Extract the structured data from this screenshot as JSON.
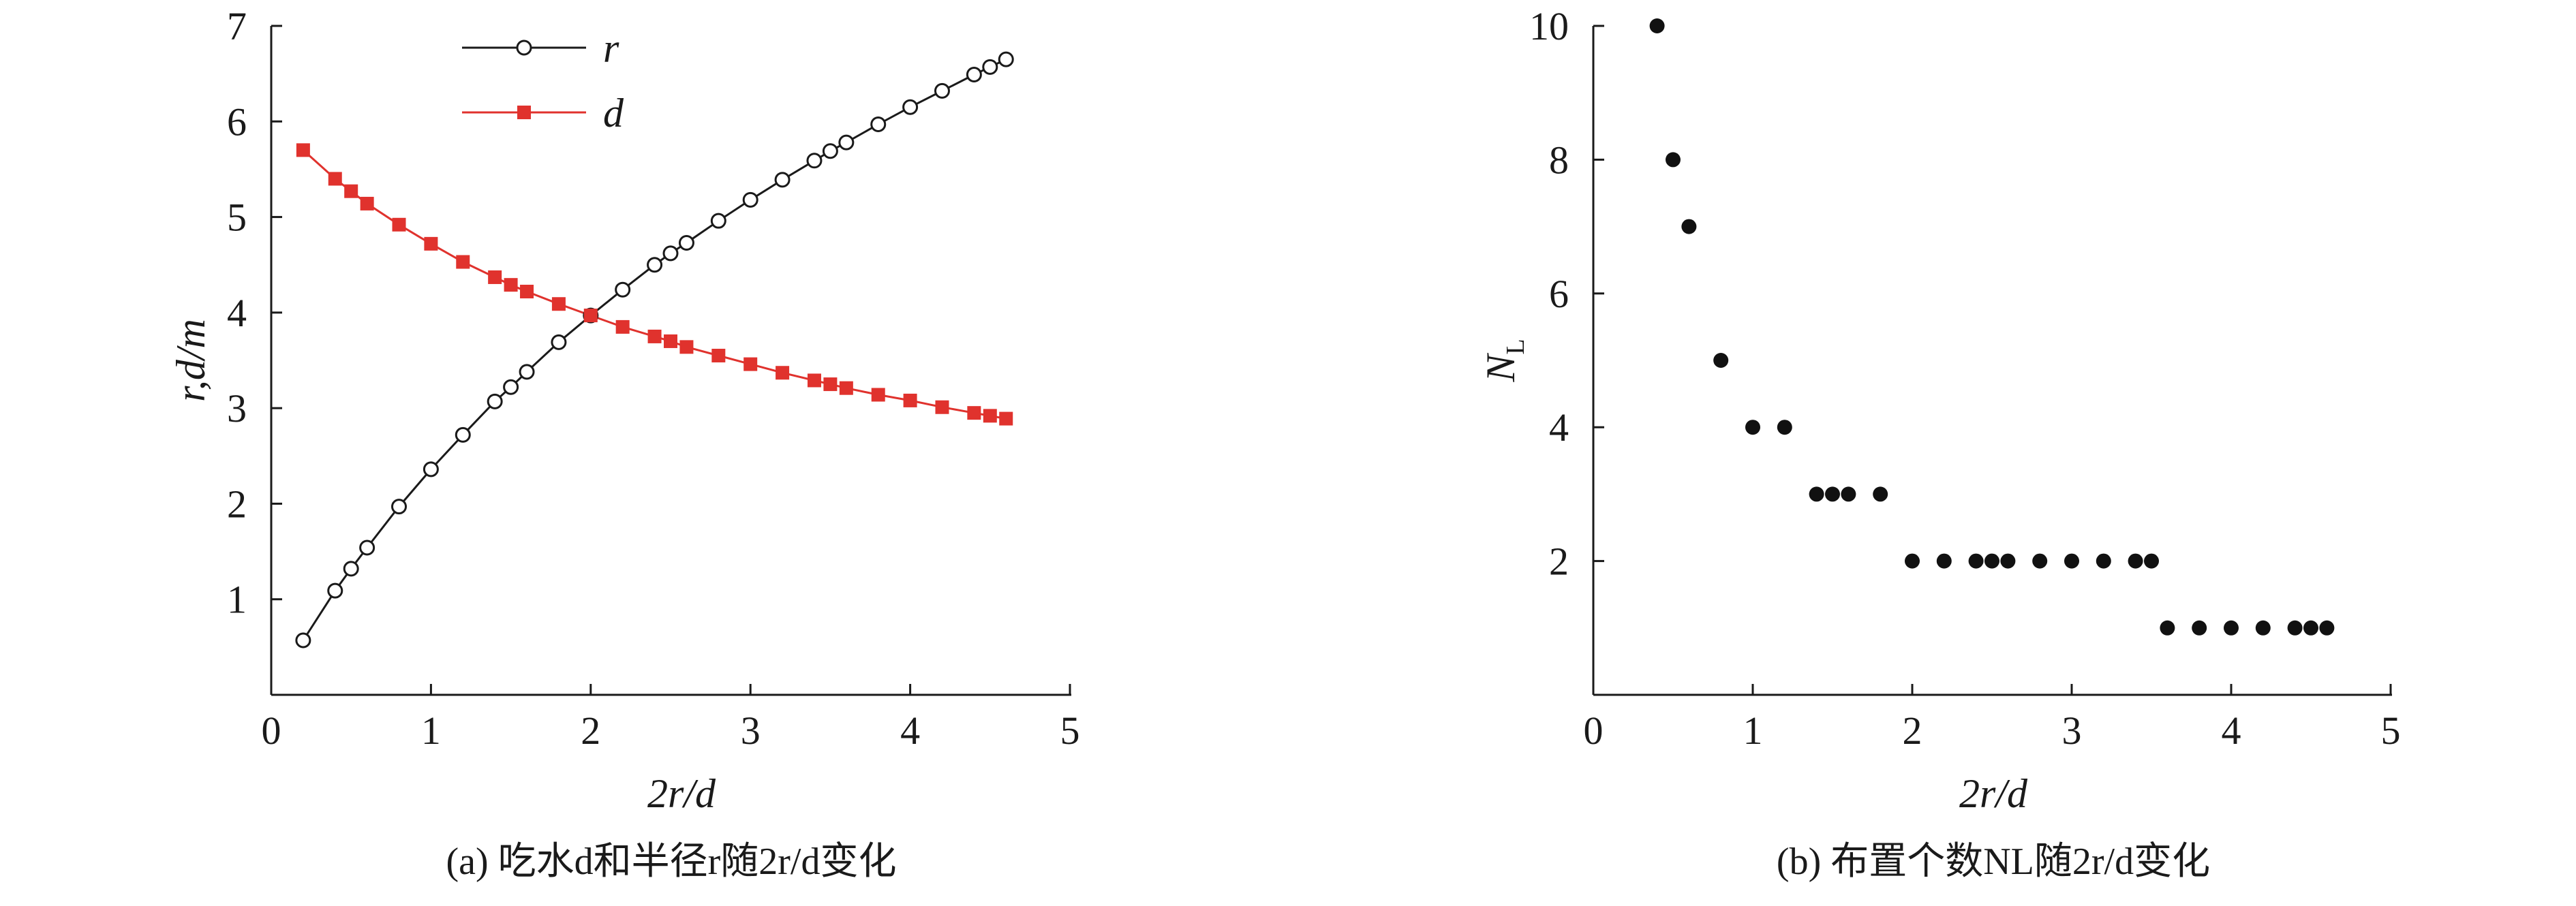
{
  "charts": [
    {
      "caption": "(a) 吃水d和半径r随2r/d变化",
      "xlabel": "2r/d",
      "ylabel": "r,d/m",
      "x_ticks": [
        "0",
        "1",
        "2",
        "3",
        "4",
        "5"
      ],
      "y_ticks": [
        "1",
        "2",
        "3",
        "4",
        "5",
        "6",
        "7"
      ]
    },
    {
      "caption": "(b) 布置个数NL随2r/d变化",
      "xlabel": "2r/d",
      "ylabel": "NL",
      "x_ticks": [
        "0",
        "1",
        "2",
        "3",
        "4",
        "5"
      ],
      "y_ticks": [
        "2",
        "4",
        "6",
        "8",
        "10"
      ]
    }
  ],
  "colors": {
    "r_series": "#1a1a1a",
    "d_series": "#e0322d",
    "scatter": "#111111",
    "axes": "#1a1a1a"
  },
  "chart_data": [
    {
      "type": "line",
      "xlabel": "2r/d",
      "ylabel": "r,d/m",
      "xlim": [
        0,
        5
      ],
      "ylim": [
        0,
        7
      ],
      "grid": false,
      "legend_position": "top-center",
      "series": [
        {
          "name": "r",
          "marker": "open-circle",
          "color": "#1a1a1a",
          "x": [
            0.2,
            0.4,
            0.5,
            0.6,
            0.8,
            1.0,
            1.2,
            1.4,
            1.5,
            1.6,
            1.8,
            2.0,
            2.2,
            2.4,
            2.5,
            2.6,
            2.8,
            3.0,
            3.2,
            3.4,
            3.5,
            3.6,
            3.8,
            4.0,
            4.2,
            4.4,
            4.5,
            4.6
          ],
          "y": [
            0.57,
            1.09,
            1.32,
            1.54,
            1.97,
            2.36,
            2.72,
            3.07,
            3.22,
            3.38,
            3.69,
            3.97,
            4.24,
            4.5,
            4.62,
            4.73,
            4.96,
            5.18,
            5.39,
            5.59,
            5.69,
            5.78,
            5.97,
            6.15,
            6.32,
            6.49,
            6.57,
            6.65
          ]
        },
        {
          "name": "d",
          "marker": "filled-square",
          "color": "#e0322d",
          "x": [
            0.2,
            0.4,
            0.5,
            0.6,
            0.8,
            1.0,
            1.2,
            1.4,
            1.5,
            1.6,
            1.8,
            2.0,
            2.2,
            2.4,
            2.5,
            2.6,
            2.8,
            3.0,
            3.2,
            3.4,
            3.5,
            3.6,
            3.8,
            4.0,
            4.2,
            4.4,
            4.5,
            4.6
          ],
          "y": [
            5.7,
            5.4,
            5.27,
            5.14,
            4.92,
            4.72,
            4.53,
            4.37,
            4.29,
            4.22,
            4.09,
            3.97,
            3.85,
            3.75,
            3.7,
            3.64,
            3.55,
            3.46,
            3.37,
            3.29,
            3.25,
            3.21,
            3.14,
            3.08,
            3.01,
            2.95,
            2.92,
            2.89
          ]
        }
      ]
    },
    {
      "type": "scatter",
      "xlabel": "2r/d",
      "ylabel": "NL",
      "xlim": [
        0,
        5
      ],
      "ylim": [
        0,
        10
      ],
      "grid": false,
      "series": [
        {
          "marker": "filled-circle",
          "color": "#111111",
          "x": [
            0.4,
            0.5,
            0.6,
            0.8,
            1.0,
            1.2,
            1.4,
            1.5,
            1.6,
            1.8,
            2.0,
            2.2,
            2.4,
            2.5,
            2.6,
            2.8,
            3.0,
            3.2,
            3.4,
            3.5,
            3.6,
            3.8,
            4.0,
            4.2,
            4.4,
            4.5,
            4.6
          ],
          "y": [
            10,
            8,
            7,
            5,
            4,
            4,
            3,
            3,
            3,
            3,
            2,
            2,
            2,
            2,
            2,
            2,
            2,
            2,
            2,
            2,
            1,
            1,
            1,
            1,
            1,
            1,
            1
          ]
        }
      ]
    }
  ]
}
